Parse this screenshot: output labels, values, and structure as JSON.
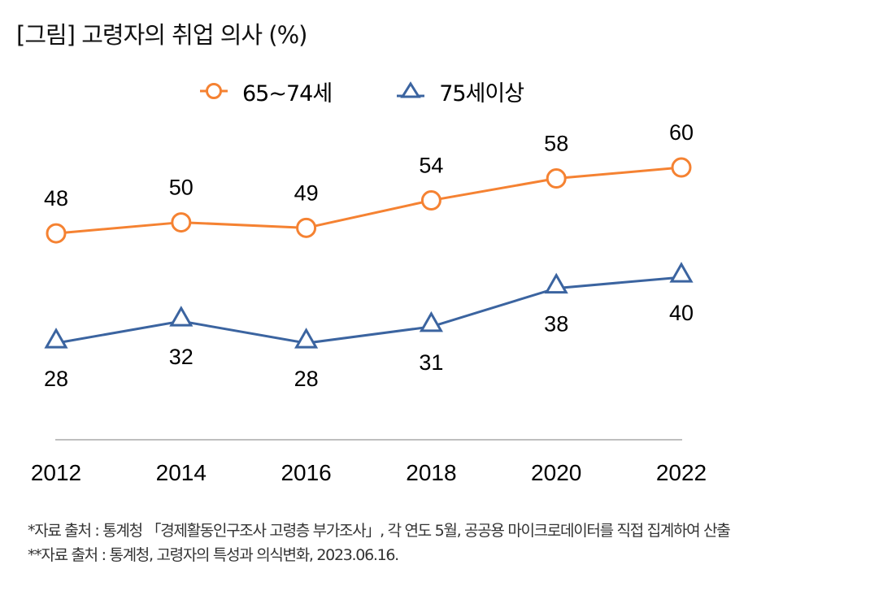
{
  "title": "[그림] 고령자의 취업 의사 (%)",
  "colors": {
    "series_65_74": "#F58232",
    "series_75_plus": "#3B64A0",
    "axis": "#BFBFBF"
  },
  "chart_data": {
    "type": "line",
    "title": "[그림] 고령자의 취업 의사 (%)",
    "xlabel": "",
    "ylabel": "",
    "categories": [
      "2012",
      "2014",
      "2016",
      "2018",
      "2020",
      "2022"
    ],
    "series": [
      {
        "name": "65~74세",
        "marker": "circle",
        "color": "#F58232",
        "values": [
          48,
          50,
          49,
          54,
          58,
          60
        ],
        "label_position": "above"
      },
      {
        "name": "75세이상",
        "marker": "triangle",
        "color": "#3B64A0",
        "values": [
          28,
          32,
          28,
          31,
          38,
          40
        ],
        "label_position": "below"
      }
    ],
    "ylim": [
      10.4,
      70
    ],
    "grid": false,
    "y_axis_visible": false,
    "legend_position": "top"
  },
  "legend": [
    {
      "label": "65~74세",
      "icon": "circle-marker-icon"
    },
    {
      "label": "75세이상",
      "icon": "triangle-marker-icon"
    }
  ],
  "notes": [
    "*자료 출처 : 통계청 「경제활동인구조사 고령층 부가조사」, 각 연도 5월, 공공용 마이크로데이터를 직접 집계하여 산출",
    "**자료 출처 : 통계청, 고령자의 특성과 의식변화, 2023.06.16."
  ]
}
